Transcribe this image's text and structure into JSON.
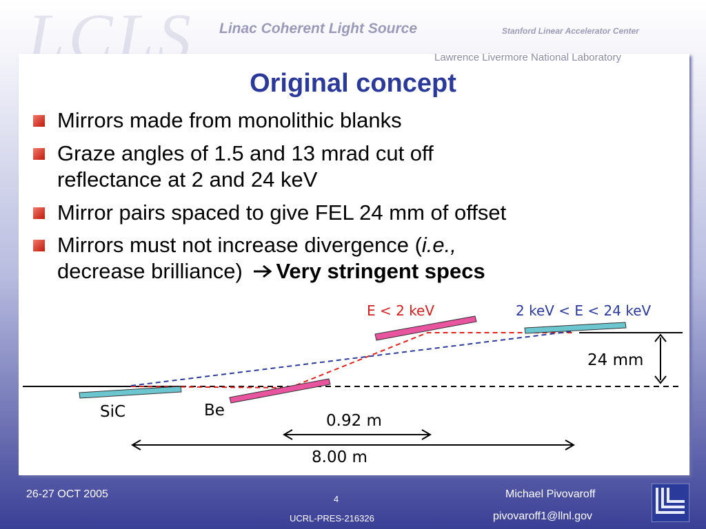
{
  "header": {
    "logo": "LCLS",
    "subtitle": "Linac Coherent Light Source",
    "org1": "Stanford Linear Accelerator Center",
    "org2": "Lawrence Livermore National Laboratory"
  },
  "title": "Original concept",
  "bullets": [
    {
      "lines": [
        "Mirrors made from monolithic blanks"
      ]
    },
    {
      "lines": [
        "Graze angles of 1.5 and 13 mrad cut off",
        "reflectance at 2 and 24 keV"
      ]
    },
    {
      "lines": [
        "Mirror pairs spaced to give FEL 24 mm of offset"
      ]
    },
    {
      "parts": {
        "a": "Mirrors must not increase divergence (",
        "italic": "i.e.,",
        "b": "decrease brilliance)",
        "bold": "Very stringent specs"
      }
    }
  ],
  "diagram": {
    "low_energy": "E < 2 keV",
    "high_energy": "2 keV < E < 24 keV",
    "offset": "24 mm",
    "mirror1": "SiC",
    "mirror2": "Be",
    "spacing_short": "0.92 m",
    "spacing_long": "8.00 m"
  },
  "footer": {
    "date": "26-27 OCT 2005",
    "page": "4",
    "report": "UCRL-PRES-216326",
    "author": "Michael Pivovaroff",
    "email": "pivovaroff1@llnl.gov"
  }
}
